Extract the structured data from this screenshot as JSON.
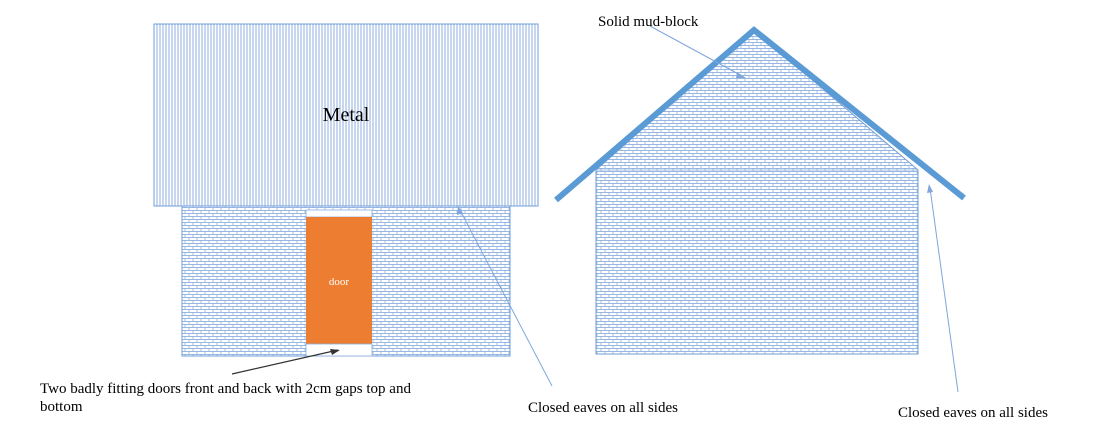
{
  "front_view": {
    "roof_label": "Metal",
    "door_label": "door",
    "door_note_line1": "Two badly fitting doors front and back with 2cm gaps top and",
    "door_note_line2": "bottom",
    "eaves_note": "Closed eaves on all sides"
  },
  "side_view": {
    "wall_note": "Solid mud-block",
    "eaves_note": "Closed eaves on all sides"
  },
  "colors": {
    "hatch_blue": "#5b8fd1",
    "door_orange": "#ed7d31",
    "roof_edge_blue": "#5b9bd5",
    "outline": "#6f9ed8"
  }
}
